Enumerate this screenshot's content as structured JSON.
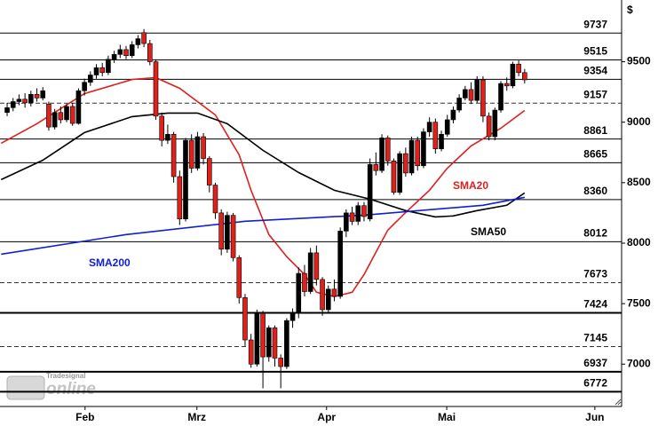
{
  "chart_data": {
    "type": "candlestick",
    "currency_label": "$",
    "logo": {
      "brand": "Tradesignal",
      "product": "online"
    },
    "up_color": "#000000",
    "down_color": "#e0201b",
    "x": [
      0,
      1,
      2,
      3,
      4,
      5,
      6,
      7,
      8,
      9,
      10,
      11,
      12,
      13,
      14,
      15,
      16,
      17,
      18,
      19,
      20,
      21,
      22,
      23,
      24,
      25,
      26,
      27,
      28,
      29,
      30,
      31,
      32,
      33,
      34,
      35,
      36,
      37,
      38,
      39,
      40,
      41,
      42,
      43,
      44,
      45,
      46,
      47,
      48,
      49,
      50,
      51,
      52,
      53,
      54,
      55,
      56,
      57,
      58,
      59,
      60,
      61,
      62,
      63,
      64,
      65,
      66,
      67,
      68,
      69,
      70,
      71,
      72,
      73,
      74,
      75,
      76,
      77,
      78,
      79,
      80,
      81,
      82,
      83,
      84,
      85,
      86,
      87
    ],
    "open": [
      9080,
      9120,
      9170,
      9190,
      9160,
      9230,
      9200,
      9150,
      8960,
      9080,
      9020,
      9130,
      8990,
      9260,
      9330,
      9390,
      9450,
      9410,
      9520,
      9560,
      9600,
      9550,
      9640,
      9740,
      9650,
      9500,
      9050,
      8850,
      8900,
      8550,
      8200,
      8850,
      8620,
      8880,
      8700,
      8480,
      8250,
      7950,
      8230,
      7880,
      7550,
      7200,
      7000,
      7420,
      7060,
      7300,
      7050,
      6980,
      7360,
      7420,
      7750,
      7600,
      7920,
      7700,
      7450,
      7620,
      7560,
      8100,
      8250,
      8180,
      8310,
      8200,
      8650,
      8600,
      8870,
      8680,
      8420,
      8740,
      8580,
      8850,
      8640,
      8920,
      9000,
      8780,
      8900,
      9020,
      9100,
      9200,
      9270,
      9180,
      9350,
      9050,
      8880,
      9100,
      9320,
      9300,
      9480,
      9410
    ],
    "high": [
      9160,
      9200,
      9230,
      9240,
      9260,
      9280,
      9290,
      9170,
      9110,
      9130,
      9150,
      9160,
      9280,
      9360,
      9420,
      9480,
      9490,
      9550,
      9590,
      9640,
      9630,
      9670,
      9720,
      9770,
      9680,
      9520,
      9080,
      8980,
      8920,
      8600,
      8870,
      8900,
      8920,
      8910,
      8720,
      8500,
      8280,
      8260,
      8250,
      7900,
      7580,
      7250,
      7450,
      7440,
      7320,
      7320,
      7080,
      7380,
      7460,
      7800,
      7820,
      7960,
      7980,
      7720,
      7650,
      7700,
      8130,
      8280,
      8300,
      8340,
      8340,
      8700,
      8750,
      8900,
      8890,
      8700,
      8760,
      8790,
      8880,
      8880,
      8950,
      9040,
      9030,
      8930,
      9060,
      9130,
      9230,
      9300,
      9330,
      9380,
      9380,
      9080,
      9120,
      9340,
      9370,
      9500,
      9510,
      9440
    ],
    "low": [
      9050,
      9090,
      9140,
      9120,
      9130,
      9170,
      9180,
      8930,
      8940,
      8990,
      9000,
      8970,
      8980,
      9220,
      9300,
      9360,
      9380,
      9390,
      9490,
      9530,
      9520,
      9530,
      9610,
      9620,
      9470,
      9020,
      8800,
      8820,
      8500,
      8150,
      8180,
      8580,
      8600,
      8650,
      8420,
      8200,
      7900,
      7920,
      7850,
      7500,
      7150,
      6970,
      6980,
      6800,
      7020,
      6980,
      6800,
      6960,
      7300,
      7380,
      7560,
      7580,
      7650,
      7400,
      7420,
      7520,
      7540,
      8050,
      8150,
      8150,
      8180,
      8180,
      8560,
      8580,
      8640,
      8400,
      8400,
      8550,
      8560,
      8600,
      8620,
      8880,
      8740,
      8760,
      8880,
      8990,
      9080,
      9180,
      9150,
      9160,
      9000,
      8850,
      8850,
      9080,
      9260,
      9280,
      9380,
      9320
    ],
    "close": [
      9120,
      9170,
      9190,
      9160,
      9230,
      9200,
      9260,
      8960,
      9080,
      9020,
      9130,
      8990,
      9260,
      9330,
      9390,
      9450,
      9410,
      9520,
      9560,
      9600,
      9550,
      9640,
      9690,
      9650,
      9500,
      9050,
      8850,
      8900,
      8550,
      8200,
      8850,
      8620,
      8880,
      8700,
      8480,
      8250,
      7950,
      8230,
      7880,
      7550,
      7200,
      7000,
      7420,
      7060,
      7300,
      7050,
      6980,
      7360,
      7420,
      7750,
      7600,
      7920,
      7700,
      7450,
      7620,
      7560,
      8100,
      8250,
      8180,
      8310,
      8220,
      8650,
      8600,
      8870,
      8680,
      8420,
      8740,
      8580,
      8850,
      8640,
      8920,
      9000,
      8780,
      8900,
      9020,
      9100,
      9200,
      9270,
      9180,
      9350,
      9050,
      8880,
      9100,
      9320,
      9300,
      9480,
      9410,
      9350
    ],
    "overlays": [
      {
        "name": "SMA20",
        "color": "#e0201b",
        "x": [
          -1,
          5,
          13,
          21,
          25,
          29,
          35,
          39,
          41,
          44,
          47,
          50,
          52,
          55,
          58,
          60,
          62,
          64,
          67,
          71,
          74,
          78,
          83,
          87
        ],
        "values": [
          8826,
          8987,
          9236,
          9353,
          9368,
          9280,
          9060,
          8730,
          8437,
          8071,
          7888,
          7741,
          7594,
          7558,
          7594,
          7741,
          7924,
          8108,
          8254,
          8437,
          8620,
          8804,
          8950,
          9097
        ]
      },
      {
        "name": "SMA50",
        "color": "#000000",
        "x": [
          -1,
          6,
          13,
          21,
          27,
          32,
          37,
          43,
          49,
          55,
          61,
          67,
          72,
          75,
          79,
          84,
          87
        ],
        "values": [
          8525,
          8686,
          8914,
          9046,
          9075,
          9075,
          8987,
          8767,
          8584,
          8437,
          8364,
          8269,
          8217,
          8225,
          8269,
          8313,
          8415
        ]
      },
      {
        "name": "SMA200",
        "color": "#1020d0",
        "x": [
          -1,
          20,
          40,
          60,
          80,
          87
        ],
        "values": [
          7909,
          8071,
          8181,
          8232,
          8313,
          8379
        ]
      }
    ],
    "levels": [
      {
        "value": 9737,
        "style": "solid"
      },
      {
        "value": 9515,
        "style": "solid"
      },
      {
        "value": 9354,
        "style": "solid"
      },
      {
        "value": 9157,
        "style": "dashed"
      },
      {
        "value": 8861,
        "style": "solid"
      },
      {
        "value": 8665,
        "style": "solid"
      },
      {
        "value": 8360,
        "style": "solid"
      },
      {
        "value": 8012,
        "style": "solid"
      },
      {
        "value": 7673,
        "style": "dashed"
      },
      {
        "value": 7424,
        "style": "bold"
      },
      {
        "value": 7145,
        "style": "dashed"
      },
      {
        "value": 6937,
        "style": "bold"
      },
      {
        "value": 6772,
        "style": "bold"
      }
    ],
    "ylim": [
      6650,
      10010
    ],
    "yticks": [
      7000,
      7500,
      8000,
      8500,
      9000,
      9500
    ],
    "xlim": [
      -1.2,
      103.3
    ],
    "xticks": [
      {
        "value": 13.1,
        "label": "Feb"
      },
      {
        "value": 31.9,
        "label": "Mrz"
      },
      {
        "value": 53.7,
        "label": "Apr"
      },
      {
        "value": 73.9,
        "label": "Mai"
      },
      {
        "value": 98.8,
        "label": "Jun"
      }
    ]
  }
}
